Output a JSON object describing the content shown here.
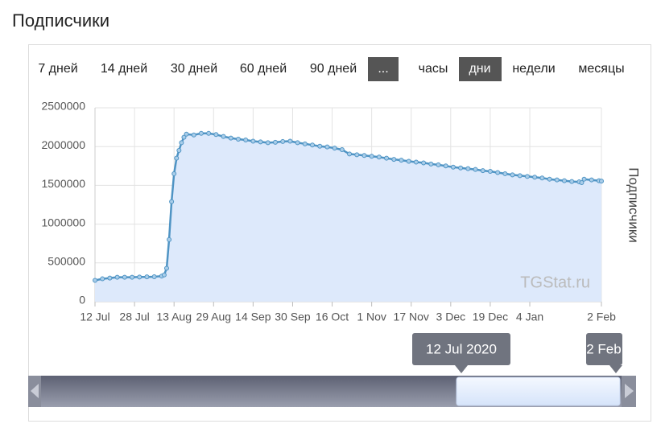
{
  "header": {
    "title": "Подписчики"
  },
  "period_buttons": [
    "7 дней",
    "14 дней",
    "30 дней",
    "60 дней",
    "90 дней",
    "..."
  ],
  "granularity_buttons": [
    "часы",
    "дни",
    "недели",
    "месяцы"
  ],
  "chart_data": {
    "type": "area",
    "y_label": "Подписчики",
    "watermark": "TGStat.ru",
    "color": "#4f94c4",
    "fill_color": "#dde9fb",
    "grid": true,
    "xlim": [
      "2020-07-12",
      "2021-02-02"
    ],
    "ylim": [
      0,
      2500000
    ],
    "xticks": [
      {
        "value": "2020-07-12",
        "label": "12 Jul"
      },
      {
        "value": "2020-07-28",
        "label": "28 Jul"
      },
      {
        "value": "2020-08-13",
        "label": "13 Aug"
      },
      {
        "value": "2020-08-29",
        "label": "29 Aug"
      },
      {
        "value": "2020-09-14",
        "label": "14 Sep"
      },
      {
        "value": "2020-09-30",
        "label": "30 Sep"
      },
      {
        "value": "2020-10-16",
        "label": "16 Oct"
      },
      {
        "value": "2020-11-01",
        "label": "1 Nov"
      },
      {
        "value": "2020-11-17",
        "label": "17 Nov"
      },
      {
        "value": "2020-12-03",
        "label": "3 Dec"
      },
      {
        "value": "2020-12-19",
        "label": "19 Dec"
      },
      {
        "value": "2021-01-04",
        "label": "4 Jan"
      },
      {
        "value": "2021-02-02",
        "label": "2 Feb"
      }
    ],
    "yticks": [
      0,
      500000,
      1000000,
      1500000,
      2000000,
      2500000
    ],
    "x": [
      "2020-07-12",
      "2020-07-15",
      "2020-07-18",
      "2020-07-21",
      "2020-07-24",
      "2020-07-27",
      "2020-07-30",
      "2020-08-02",
      "2020-08-05",
      "2020-08-08",
      "2020-08-09",
      "2020-08-10",
      "2020-08-11",
      "2020-08-12",
      "2020-08-13",
      "2020-08-14",
      "2020-08-15",
      "2020-08-16",
      "2020-08-17",
      "2020-08-18",
      "2020-08-21",
      "2020-08-24",
      "2020-08-27",
      "2020-08-30",
      "2020-09-02",
      "2020-09-05",
      "2020-09-08",
      "2020-09-11",
      "2020-09-14",
      "2020-09-17",
      "2020-09-20",
      "2020-09-23",
      "2020-09-26",
      "2020-09-29",
      "2020-10-02",
      "2020-10-05",
      "2020-10-08",
      "2020-10-11",
      "2020-10-14",
      "2020-10-17",
      "2020-10-20",
      "2020-10-23",
      "2020-10-26",
      "2020-10-29",
      "2020-11-01",
      "2020-11-04",
      "2020-11-07",
      "2020-11-10",
      "2020-11-13",
      "2020-11-16",
      "2020-11-19",
      "2020-11-22",
      "2020-11-25",
      "2020-11-28",
      "2020-12-01",
      "2020-12-04",
      "2020-12-07",
      "2020-12-10",
      "2020-12-13",
      "2020-12-16",
      "2020-12-19",
      "2020-12-22",
      "2020-12-25",
      "2020-12-28",
      "2020-12-31",
      "2021-01-03",
      "2021-01-06",
      "2021-01-09",
      "2021-01-12",
      "2021-01-15",
      "2021-01-18",
      "2021-01-21",
      "2021-01-24",
      "2021-01-25",
      "2021-01-26",
      "2021-01-29",
      "2021-02-01",
      "2021-02-02"
    ],
    "values": [
      275000,
      295000,
      305000,
      315000,
      315000,
      315000,
      318000,
      320000,
      322000,
      330000,
      345000,
      430000,
      800000,
      1290000,
      1650000,
      1850000,
      1950000,
      2050000,
      2120000,
      2160000,
      2150000,
      2170000,
      2170000,
      2155000,
      2130000,
      2110000,
      2095000,
      2085000,
      2070000,
      2060000,
      2050000,
      2055000,
      2065000,
      2070000,
      2050000,
      2035000,
      2020000,
      2005000,
      1995000,
      1980000,
      1960000,
      1905000,
      1895000,
      1885000,
      1875000,
      1865000,
      1850000,
      1835000,
      1825000,
      1810000,
      1800000,
      1790000,
      1775000,
      1765000,
      1750000,
      1735000,
      1725000,
      1715000,
      1705000,
      1690000,
      1680000,
      1665000,
      1650000,
      1635000,
      1625000,
      1615000,
      1605000,
      1595000,
      1580000,
      1570000,
      1560000,
      1550000,
      1545000,
      1535000,
      1580000,
      1570000,
      1560000,
      1555000
    ]
  },
  "navigator": {
    "start_label": "12 Jul 2020",
    "end_label": "2 Feb"
  }
}
